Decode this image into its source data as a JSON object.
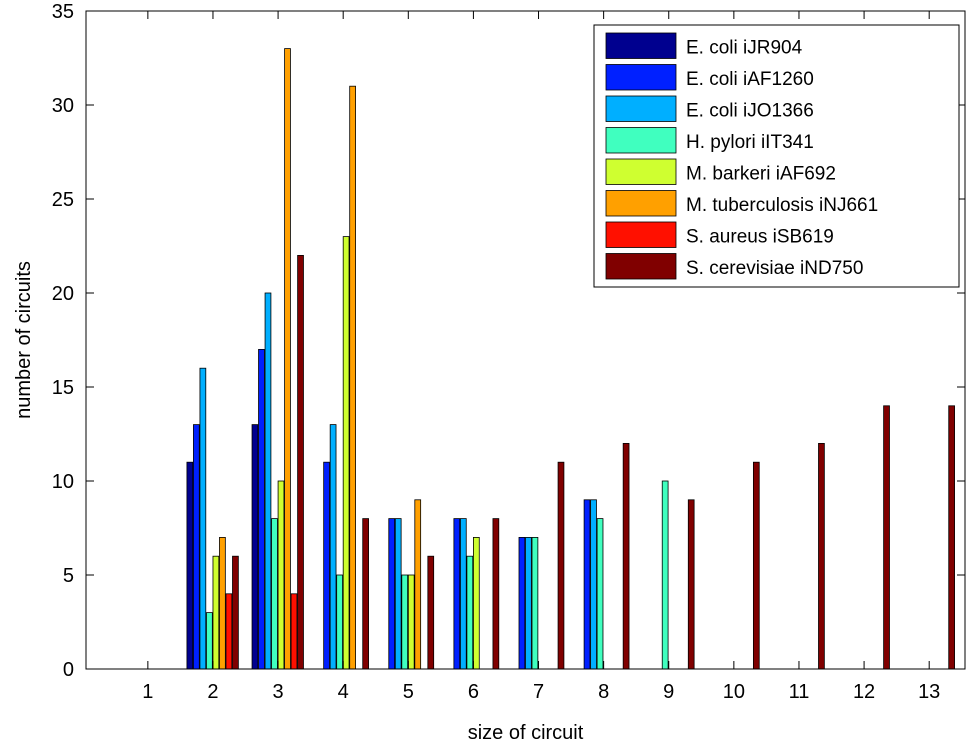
{
  "chart_data": {
    "type": "bar",
    "title": "",
    "xlabel": "size of circuit",
    "ylabel": "number of circuits",
    "categories": [
      "1",
      "2",
      "3",
      "4",
      "5",
      "6",
      "7",
      "8",
      "9",
      "10",
      "11",
      "12",
      "13"
    ],
    "ylim": [
      0,
      35
    ],
    "yticks": [
      0,
      5,
      10,
      15,
      20,
      25,
      30,
      35
    ],
    "legend_position": "top-right",
    "grid": false,
    "series": [
      {
        "name": "E. coli iJR904",
        "color": "#00008f",
        "values": [
          0,
          11,
          13,
          0,
          0,
          0,
          0,
          0,
          0,
          0,
          0,
          0,
          0
        ]
      },
      {
        "name": "E. coli iAF1260",
        "color": "#0020ff",
        "values": [
          0,
          13,
          17,
          11,
          8,
          8,
          7,
          9,
          0,
          0,
          0,
          0,
          0
        ]
      },
      {
        "name": "E. coli iJO1366",
        "color": "#00afff",
        "values": [
          0,
          16,
          20,
          13,
          8,
          8,
          7,
          9,
          0,
          0,
          0,
          0,
          0
        ]
      },
      {
        "name": "H. pylori iIT341",
        "color": "#40ffbf",
        "values": [
          0,
          3,
          8,
          5,
          5,
          6,
          7,
          8,
          10,
          0,
          0,
          0,
          0
        ]
      },
      {
        "name": "M. barkeri iAF692",
        "color": "#cfff30",
        "values": [
          0,
          6,
          10,
          23,
          5,
          7,
          0,
          0,
          0,
          0,
          0,
          0,
          0
        ]
      },
      {
        "name": "M. tuberculosis iNJ661",
        "color": "#ffa000",
        "values": [
          0,
          7,
          33,
          31,
          9,
          0,
          0,
          0,
          0,
          0,
          0,
          0,
          0
        ]
      },
      {
        "name": "S. aureus iSB619",
        "color": "#ff1000",
        "values": [
          0,
          4,
          4,
          0,
          0,
          0,
          0,
          0,
          0,
          0,
          0,
          0,
          0
        ]
      },
      {
        "name": "S. cerevisiae iND750",
        "color": "#800000",
        "values": [
          0,
          6,
          22,
          8,
          6,
          8,
          11,
          12,
          9,
          11,
          12,
          14,
          14
        ]
      }
    ]
  }
}
